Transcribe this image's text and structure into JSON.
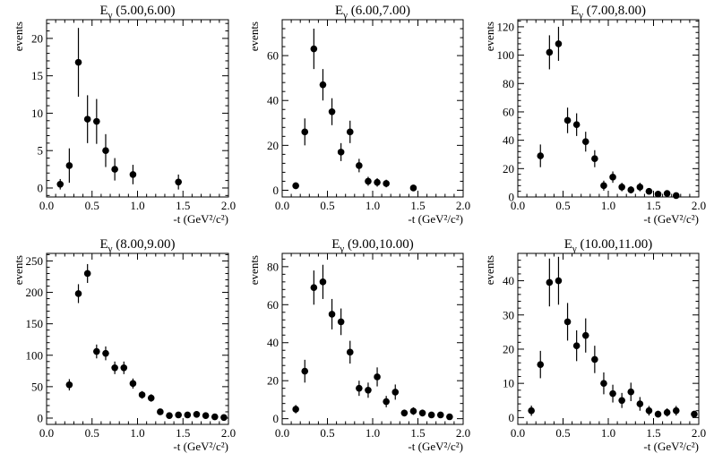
{
  "figure": {
    "x_tick_labels": [
      "0.0",
      "0.5",
      "1.0",
      "1.5",
      "2.0"
    ],
    "y_label": "events",
    "x_label": "-t (GeV²/c²)"
  },
  "chart_data": [
    {
      "type": "scatter",
      "title": "Eγ (5.00,6.00)",
      "title_main": "E",
      "title_sub": "γ",
      "title_range": "(5.00,6.00)",
      "xlabel": "-t (GeV²/c²)",
      "ylabel": "events",
      "xlim": [
        0,
        2
      ],
      "ylim": [
        -1.2,
        22.5
      ],
      "x_ticks": [
        0,
        0.5,
        1.0,
        1.5,
        2.0
      ],
      "y_ticks": [
        0,
        5,
        10,
        15,
        20
      ],
      "y_tick_labels": [
        "0",
        "5",
        "10",
        "15",
        "20"
      ],
      "points": [
        {
          "x": 0.15,
          "y": 0.5,
          "err": 0.7
        },
        {
          "x": 0.25,
          "y": 3.0,
          "err": 2.3
        },
        {
          "x": 0.35,
          "y": 16.8,
          "err": 4.6
        },
        {
          "x": 0.45,
          "y": 9.2,
          "err": 3.2
        },
        {
          "x": 0.55,
          "y": 8.9,
          "err": 3.0
        },
        {
          "x": 0.65,
          "y": 5.0,
          "err": 2.2
        },
        {
          "x": 0.75,
          "y": 2.5,
          "err": 1.5
        },
        {
          "x": 0.95,
          "y": 1.8,
          "err": 1.3
        },
        {
          "x": 1.45,
          "y": 0.8,
          "err": 1.0
        }
      ]
    },
    {
      "type": "scatter",
      "title": "Eγ (6.00,7.00)",
      "title_main": "E",
      "title_sub": "γ",
      "title_range": "(6.00,7.00)",
      "xlabel": "-t (GeV²/c²)",
      "ylabel": "events",
      "xlim": [
        0,
        2
      ],
      "ylim": [
        -3,
        76
      ],
      "x_ticks": [
        0,
        0.5,
        1.0,
        1.5,
        2.0
      ],
      "y_ticks": [
        0,
        20,
        40,
        60
      ],
      "y_tick_labels": [
        "0",
        "20",
        "40",
        "60"
      ],
      "points": [
        {
          "x": 0.15,
          "y": 2.0,
          "err": 1.5
        },
        {
          "x": 0.25,
          "y": 26.0,
          "err": 6.0
        },
        {
          "x": 0.35,
          "y": 63.0,
          "err": 9.0
        },
        {
          "x": 0.45,
          "y": 47.0,
          "err": 7.0
        },
        {
          "x": 0.55,
          "y": 35.0,
          "err": 6.0
        },
        {
          "x": 0.65,
          "y": 17.0,
          "err": 4.0
        },
        {
          "x": 0.75,
          "y": 26.0,
          "err": 5.0
        },
        {
          "x": 0.85,
          "y": 11.0,
          "err": 3.0
        },
        {
          "x": 0.95,
          "y": 4.0,
          "err": 2.0
        },
        {
          "x": 1.05,
          "y": 3.5,
          "err": 1.9
        },
        {
          "x": 1.15,
          "y": 3.0,
          "err": 1.7
        },
        {
          "x": 1.45,
          "y": 1.0,
          "err": 1.0
        }
      ]
    },
    {
      "type": "scatter",
      "title": "Eγ (7.00,8.00)",
      "title_main": "E",
      "title_sub": "γ",
      "title_range": "(7.00,8.00)",
      "xlabel": "-t (GeV²/c²)",
      "ylabel": "events",
      "xlim": [
        0,
        2
      ],
      "ylim": [
        0,
        125
      ],
      "x_ticks": [
        0,
        0.5,
        1.0,
        1.5,
        2.0
      ],
      "y_ticks": [
        0,
        20,
        40,
        60,
        80,
        100,
        120
      ],
      "y_tick_labels": [
        "0",
        "20",
        "40",
        "60",
        "80",
        "100",
        "120"
      ],
      "points": [
        {
          "x": 0.25,
          "y": 29.0,
          "err": 8.0
        },
        {
          "x": 0.35,
          "y": 102.0,
          "err": 12.0
        },
        {
          "x": 0.45,
          "y": 108.0,
          "err": 12.0
        },
        {
          "x": 0.55,
          "y": 54.0,
          "err": 9.0
        },
        {
          "x": 0.65,
          "y": 51.0,
          "err": 8.0
        },
        {
          "x": 0.75,
          "y": 39.0,
          "err": 7.0
        },
        {
          "x": 0.85,
          "y": 27.0,
          "err": 6.0
        },
        {
          "x": 0.95,
          "y": 8.0,
          "err": 3.5
        },
        {
          "x": 1.05,
          "y": 14.0,
          "err": 4.0
        },
        {
          "x": 1.15,
          "y": 7.0,
          "err": 3.0
        },
        {
          "x": 1.25,
          "y": 5.0,
          "err": 2.5
        },
        {
          "x": 1.35,
          "y": 7.0,
          "err": 3.0
        },
        {
          "x": 1.45,
          "y": 4.0,
          "err": 2.0
        },
        {
          "x": 1.55,
          "y": 2.0,
          "err": 1.5
        },
        {
          "x": 1.65,
          "y": 2.5,
          "err": 1.5
        },
        {
          "x": 1.75,
          "y": 1.0,
          "err": 1.0
        }
      ]
    },
    {
      "type": "scatter",
      "title": "Eγ (8.00,9.00)",
      "title_main": "E",
      "title_sub": "γ",
      "title_range": "(8.00,9.00)",
      "xlabel": "-t (GeV²/c²)",
      "ylabel": "events",
      "xlim": [
        0,
        2
      ],
      "ylim": [
        -10,
        262
      ],
      "x_ticks": [
        0,
        0.5,
        1.0,
        1.5,
        2.0
      ],
      "y_ticks": [
        0,
        50,
        100,
        150,
        200,
        250
      ],
      "y_tick_labels": [
        "0",
        "50",
        "100",
        "150",
        "200",
        "250"
      ],
      "points": [
        {
          "x": 0.25,
          "y": 53.0,
          "err": 9.0
        },
        {
          "x": 0.35,
          "y": 198.0,
          "err": 15.0
        },
        {
          "x": 0.45,
          "y": 230.0,
          "err": 15.0
        },
        {
          "x": 0.55,
          "y": 106.0,
          "err": 11.0
        },
        {
          "x": 0.65,
          "y": 103.0,
          "err": 11.0
        },
        {
          "x": 0.75,
          "y": 80.0,
          "err": 10.0
        },
        {
          "x": 0.85,
          "y": 80.0,
          "err": 10.0
        },
        {
          "x": 0.95,
          "y": 55.0,
          "err": 8.0
        },
        {
          "x": 1.05,
          "y": 37.0,
          "err": 6.0
        },
        {
          "x": 1.15,
          "y": 32.0,
          "err": 6.0
        },
        {
          "x": 1.25,
          "y": 10.0,
          "err": 3.5
        },
        {
          "x": 1.35,
          "y": 4.0,
          "err": 2.2
        },
        {
          "x": 1.45,
          "y": 5.0,
          "err": 2.2
        },
        {
          "x": 1.55,
          "y": 5.0,
          "err": 2.2
        },
        {
          "x": 1.65,
          "y": 6.0,
          "err": 2.4
        },
        {
          "x": 1.75,
          "y": 4.0,
          "err": 2.0
        },
        {
          "x": 1.85,
          "y": 2.0,
          "err": 1.5
        },
        {
          "x": 1.95,
          "y": 1.0,
          "err": 1.0
        }
      ]
    },
    {
      "type": "scatter",
      "title": "Eγ (9.00,10.00)",
      "title_main": "E",
      "title_sub": "γ",
      "title_range": "(9.00,10.00)",
      "xlabel": "-t (GeV²/c²)",
      "ylabel": "events",
      "xlim": [
        0,
        2
      ],
      "ylim": [
        -3,
        87
      ],
      "x_ticks": [
        0,
        0.5,
        1.0,
        1.5,
        2.0
      ],
      "y_ticks": [
        0,
        20,
        40,
        60,
        80
      ],
      "y_tick_labels": [
        "0",
        "20",
        "40",
        "60",
        "80"
      ],
      "points": [
        {
          "x": 0.15,
          "y": 5.0,
          "err": 2.2
        },
        {
          "x": 0.25,
          "y": 25.0,
          "err": 6.0
        },
        {
          "x": 0.35,
          "y": 69.0,
          "err": 9.0
        },
        {
          "x": 0.45,
          "y": 72.0,
          "err": 9.0
        },
        {
          "x": 0.55,
          "y": 55.0,
          "err": 8.0
        },
        {
          "x": 0.65,
          "y": 51.0,
          "err": 7.0
        },
        {
          "x": 0.75,
          "y": 35.0,
          "err": 6.0
        },
        {
          "x": 0.85,
          "y": 16.0,
          "err": 4.0
        },
        {
          "x": 0.95,
          "y": 15.0,
          "err": 4.0
        },
        {
          "x": 1.05,
          "y": 22.0,
          "err": 5.0
        },
        {
          "x": 1.15,
          "y": 9.0,
          "err": 3.0
        },
        {
          "x": 1.25,
          "y": 14.0,
          "err": 4.0
        },
        {
          "x": 1.35,
          "y": 3.0,
          "err": 1.8
        },
        {
          "x": 1.45,
          "y": 4.0,
          "err": 2.0
        },
        {
          "x": 1.55,
          "y": 3.0,
          "err": 1.8
        },
        {
          "x": 1.65,
          "y": 2.0,
          "err": 1.5
        },
        {
          "x": 1.75,
          "y": 2.0,
          "err": 1.5
        },
        {
          "x": 1.85,
          "y": 1.0,
          "err": 1.0
        }
      ]
    },
    {
      "type": "scatter",
      "title": "Eγ (10.00,11.00)",
      "title_main": "E",
      "title_sub": "γ",
      "title_range": "(10.00,11.00)",
      "xlabel": "-t (GeV²/c²)",
      "ylabel": "events",
      "xlim": [
        0,
        2
      ],
      "ylim": [
        -2,
        48
      ],
      "x_ticks": [
        0,
        0.5,
        1.0,
        1.5,
        2.0
      ],
      "y_ticks": [
        0,
        10,
        20,
        30,
        40
      ],
      "y_tick_labels": [
        "0",
        "10",
        "20",
        "30",
        "40"
      ],
      "points": [
        {
          "x": 0.15,
          "y": 2.0,
          "err": 1.5
        },
        {
          "x": 0.25,
          "y": 15.5,
          "err": 4.0
        },
        {
          "x": 0.35,
          "y": 39.5,
          "err": 7.0
        },
        {
          "x": 0.45,
          "y": 40.0,
          "err": 7.0
        },
        {
          "x": 0.55,
          "y": 28.0,
          "err": 5.5
        },
        {
          "x": 0.65,
          "y": 21.0,
          "err": 4.5
        },
        {
          "x": 0.75,
          "y": 24.0,
          "err": 5.0
        },
        {
          "x": 0.85,
          "y": 17.0,
          "err": 4.0
        },
        {
          "x": 0.95,
          "y": 10.0,
          "err": 3.2
        },
        {
          "x": 1.05,
          "y": 7.0,
          "err": 2.6
        },
        {
          "x": 1.15,
          "y": 5.0,
          "err": 2.2
        },
        {
          "x": 1.25,
          "y": 7.5,
          "err": 2.7
        },
        {
          "x": 1.35,
          "y": 4.0,
          "err": 2.0
        },
        {
          "x": 1.45,
          "y": 2.0,
          "err": 1.4
        },
        {
          "x": 1.55,
          "y": 1.0,
          "err": 1.0
        },
        {
          "x": 1.65,
          "y": 1.5,
          "err": 1.2
        },
        {
          "x": 1.75,
          "y": 2.0,
          "err": 1.4
        },
        {
          "x": 1.95,
          "y": 1.0,
          "err": 1.0
        }
      ]
    }
  ]
}
